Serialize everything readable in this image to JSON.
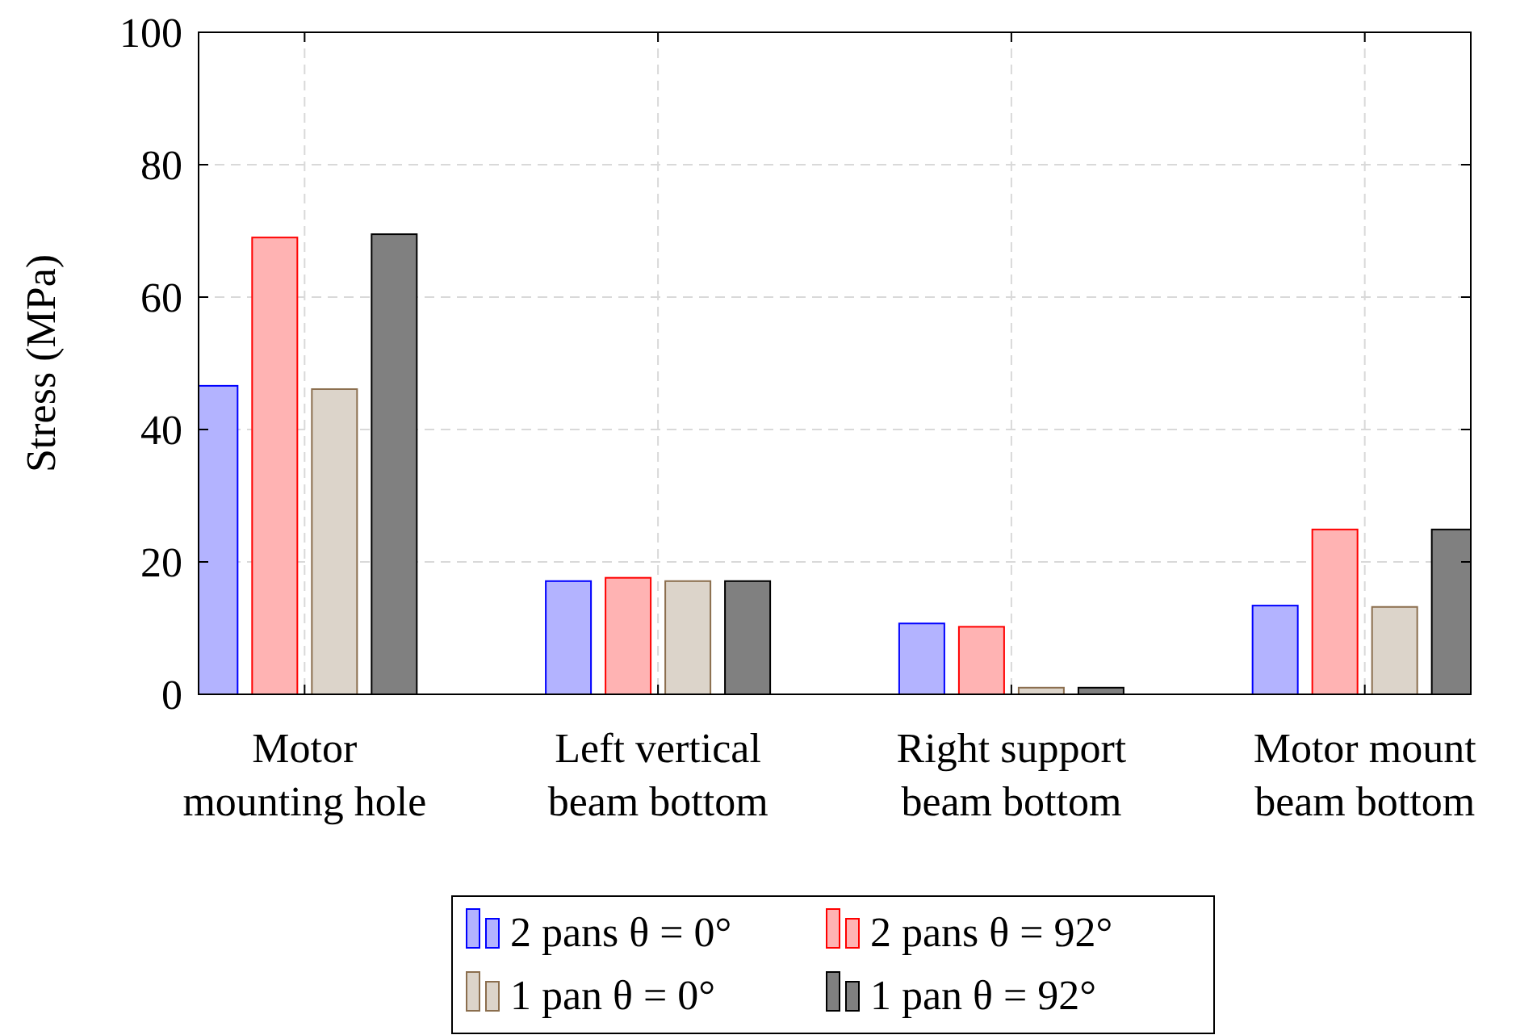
{
  "chart_data": {
    "type": "bar",
    "ylabel": "Stress (MPa)",
    "categories": [
      "Motor\nmounting hole",
      "Left vertical\nbeam bottom",
      "Right support\nbeam bottom",
      "Motor mount\nbeam bottom"
    ],
    "series": [
      {
        "name": "2 pans θ = 0°",
        "color": "#0000ff",
        "values": [
          46.6,
          17.1,
          10.7,
          13.4
        ]
      },
      {
        "name": "2 pans θ = 92°",
        "color": "#ff0000",
        "values": [
          69.0,
          17.6,
          10.2,
          24.9
        ]
      },
      {
        "name": "1 pan θ = 0°",
        "color": "#8b6e4e",
        "values": [
          46.1,
          17.1,
          1.0,
          13.2
        ]
      },
      {
        "name": "1 pan θ = 92°",
        "color": "#000000",
        "values": [
          69.5,
          17.1,
          1.0,
          24.9
        ]
      }
    ],
    "ylim": [
      0,
      100
    ],
    "yticks": [
      0,
      20,
      40,
      60,
      80,
      100
    ],
    "grid": true,
    "legend": "bottom"
  }
}
